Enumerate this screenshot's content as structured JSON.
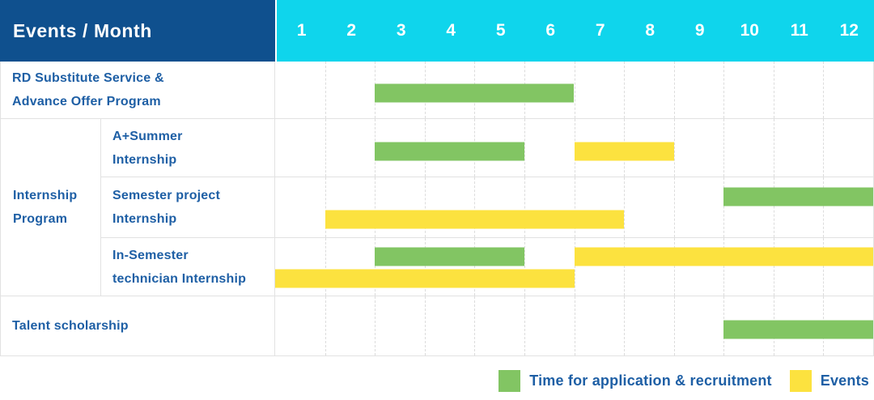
{
  "chart_data": {
    "type": "gantt",
    "corner_label": "Events / Month",
    "x_axis": {
      "unit": "month",
      "range": [
        1,
        12
      ]
    },
    "months": [
      "1",
      "2",
      "3",
      "4",
      "5",
      "6",
      "7",
      "8",
      "9",
      "10",
      "11",
      "12"
    ],
    "rows": [
      {
        "group": "",
        "label": "RD Substitute Service &\nAdvance Offer Program",
        "bars": [
          {
            "type": "recruitment",
            "start": 3,
            "end": 6,
            "lane": "mid"
          }
        ]
      },
      {
        "group": "Internship Program",
        "label": "A+Summer\nInternship",
        "bars": [
          {
            "type": "recruitment",
            "start": 3,
            "end": 5,
            "lane": "mid"
          },
          {
            "type": "events",
            "start": 7,
            "end": 8,
            "lane": "mid"
          }
        ]
      },
      {
        "group": "Internship Program",
        "label": "Semester project\nInternship",
        "bars": [
          {
            "type": "recruitment",
            "start": 10,
            "end": 12,
            "lane": "upper"
          },
          {
            "type": "events",
            "start": 2,
            "end": 7,
            "lane": "lower"
          }
        ]
      },
      {
        "group": "Internship Program",
        "label": "In-Semester\ntechnician Internship",
        "bars": [
          {
            "type": "recruitment",
            "start": 3,
            "end": 5,
            "lane": "upper"
          },
          {
            "type": "events",
            "start": 7,
            "end": 12,
            "lane": "upper"
          },
          {
            "type": "events",
            "start": 1,
            "end": 6,
            "lane": "lower"
          }
        ]
      },
      {
        "group": "",
        "label": "Talent scholarship",
        "bars": [
          {
            "type": "recruitment",
            "start": 10,
            "end": 12,
            "lane": "mid"
          }
        ]
      }
    ],
    "group_label": "Internship\nProgram",
    "legend": [
      {
        "type": "recruitment",
        "label": "Time for application & recruitment",
        "color": "#82C563"
      },
      {
        "type": "events",
        "label": "Events",
        "color": "#FCE23F"
      }
    ],
    "colors": {
      "header_bg": "#0F508E",
      "months_bg": "#0FD5EC",
      "header_text": "#FFFFFF",
      "label_text": "#1E5FA5",
      "grid_solid": "#E2E2E2",
      "grid_dashed": "#DCDCDC"
    }
  }
}
